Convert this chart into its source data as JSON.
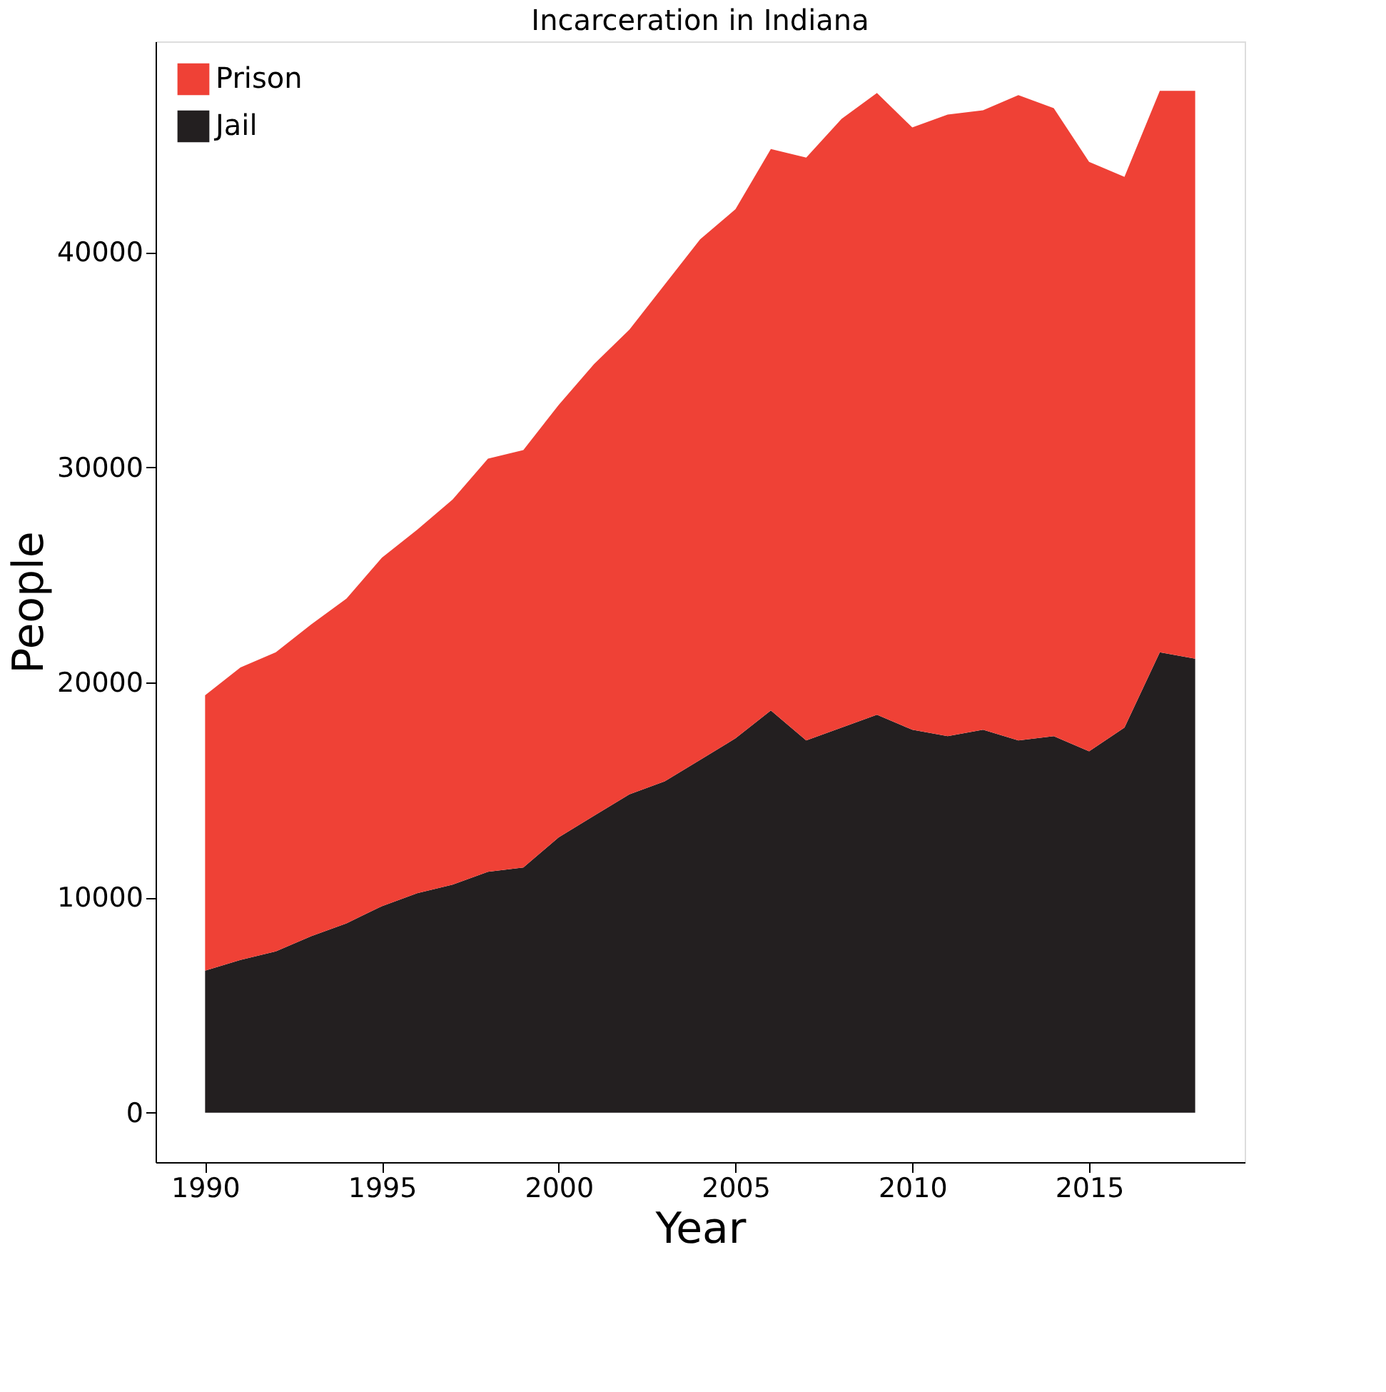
{
  "chart_data": {
    "type": "area",
    "stacked": true,
    "title": "Incarceration in Indiana",
    "xlabel": "Year",
    "ylabel": "People",
    "x": [
      1990,
      1991,
      1992,
      1993,
      1994,
      1995,
      1996,
      1997,
      1998,
      1999,
      2000,
      2001,
      2002,
      2003,
      2004,
      2005,
      2006,
      2007,
      2008,
      2009,
      2010,
      2011,
      2012,
      2013,
      2014,
      2015,
      2016,
      2017,
      2018
    ],
    "series": [
      {
        "name": "Jail",
        "color": "#231f20",
        "values": [
          6600,
          7100,
          7500,
          8200,
          8800,
          9600,
          10200,
          10600,
          11200,
          11400,
          12800,
          13800,
          14800,
          15400,
          16400,
          17400,
          18700,
          17300,
          17900,
          18500,
          17800,
          17500,
          17800,
          17300,
          17500,
          16800,
          17900,
          21400,
          21100
        ]
      },
      {
        "name": "Prison",
        "color": "#ef4136",
        "values": [
          12800,
          13600,
          13900,
          14500,
          15100,
          16200,
          16900,
          17900,
          19200,
          19400,
          20100,
          21000,
          21600,
          23100,
          24200,
          24600,
          26100,
          27100,
          28300,
          28900,
          28000,
          28900,
          28800,
          30000,
          29200,
          27400,
          25600,
          26100,
          26400
        ]
      }
    ],
    "xlim": [
      1988.6,
      2019.4
    ],
    "xticks": [
      1990,
      1995,
      2000,
      2005,
      2010,
      2015
    ],
    "ylim": [
      -2300,
      49800
    ],
    "yticks": [
      0,
      10000,
      20000,
      30000,
      40000
    ],
    "grid": false,
    "legend": "top left"
  }
}
